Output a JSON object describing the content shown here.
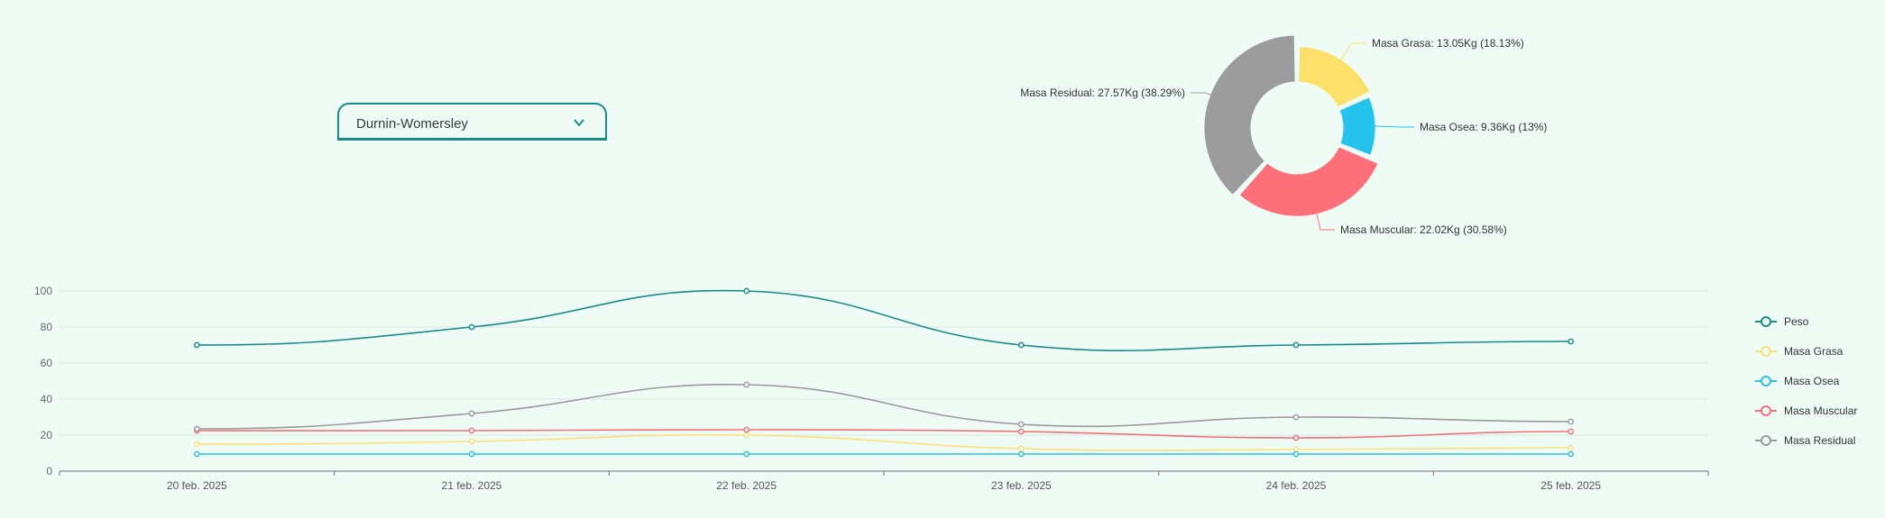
{
  "selector": {
    "value": "Durnin-Womersley"
  },
  "chart_data": [
    {
      "type": "pie",
      "variant": "donut",
      "slices": [
        {
          "name": "Masa Grasa",
          "value": 13.05,
          "label": "Masa Grasa: 13.05Kg (18.13%)",
          "color": "#fce06a"
        },
        {
          "name": "Masa Osea",
          "value": 9.36,
          "label": "Masa Osea: 9.36Kg (13%)",
          "color": "#25c3ee"
        },
        {
          "name": "Masa Muscular",
          "value": 22.02,
          "label": "Masa Muscular: 22.02Kg (30.58%)",
          "color": "#fd6f79"
        },
        {
          "name": "Masa Residual",
          "value": 27.57,
          "label": "Masa Residual: 27.57Kg (38.29%)",
          "color": "#9c9c9c"
        }
      ]
    },
    {
      "type": "line",
      "smooth": true,
      "categories": [
        "20 feb. 2025",
        "21 feb. 2025",
        "22 feb. 2025",
        "23 feb. 2025",
        "24 feb. 2025",
        "25 feb. 2025"
      ],
      "ylim": [
        0,
        100
      ],
      "yticks": [
        "0",
        "20",
        "40",
        "60",
        "80",
        "100"
      ],
      "grid": true,
      "legend_position": "right",
      "series": [
        {
          "name": "Peso",
          "color": "#1a8a85",
          "values": [
            70,
            80,
            100,
            70,
            70,
            72
          ]
        },
        {
          "name": "Masa Grasa",
          "color": "#fbe07a",
          "values": [
            15,
            16.5,
            20,
            12.5,
            12,
            13
          ]
        },
        {
          "name": "Masa Osea",
          "color": "#2fbfe0",
          "values": [
            9.5,
            9.5,
            9.5,
            9.5,
            9.5,
            9.5
          ]
        },
        {
          "name": "Masa Muscular",
          "color": "#f0707a",
          "values": [
            22.5,
            22.5,
            23,
            22,
            18.5,
            22
          ]
        },
        {
          "name": "Masa Residual",
          "color": "#9a9a9a",
          "values": [
            23.5,
            32,
            48,
            26,
            30,
            27.5
          ]
        }
      ]
    }
  ]
}
